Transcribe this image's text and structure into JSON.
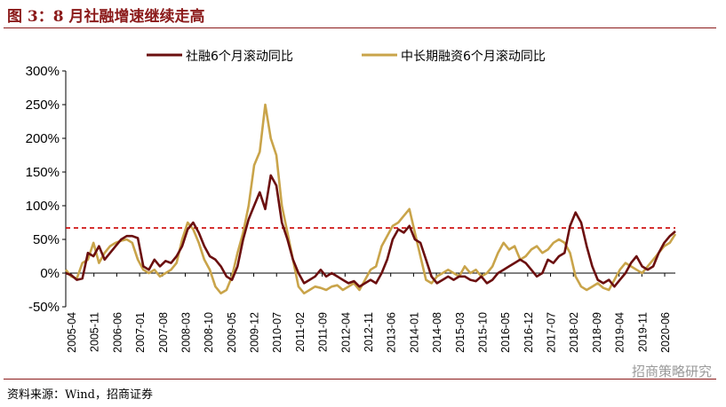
{
  "figure_title": "图 3：8 月社融增速继续走高",
  "source_text": "资料来源：Wind，招商证券",
  "watermark": "招商策略研究",
  "colors": {
    "series1": "#6b0f0f",
    "series2": "#c9a44a",
    "reference": "#cc0000",
    "title": "#8b1a1a"
  },
  "chart_data": {
    "type": "line",
    "title": "",
    "xlabel": "",
    "ylabel": "",
    "ylim": [
      -50,
      300
    ],
    "yticks": [
      "-50%",
      "0%",
      "50%",
      "100%",
      "150%",
      "200%",
      "250%",
      "300%"
    ],
    "yticks_values": [
      -50,
      0,
      50,
      100,
      150,
      200,
      250,
      300
    ],
    "xticks": [
      "2005-04",
      "2005-11",
      "2006-06",
      "2007-01",
      "2007-08",
      "2008-03",
      "2008-10",
      "2009-05",
      "2009-12",
      "2010-07",
      "2011-02",
      "2011-09",
      "2012-04",
      "2012-11",
      "2013-06",
      "2014-01",
      "2014-08",
      "2015-03",
      "2015-10",
      "2016-05",
      "2016-12",
      "2017-07",
      "2018-02",
      "2018-09",
      "2019-04",
      "2019-11",
      "2020-06"
    ],
    "legend_position": "top",
    "grid": false,
    "reference_line": {
      "value": 67,
      "style": "dashed"
    },
    "series": [
      {
        "name": "社融6个月滚动同比",
        "points": [
          [
            0,
            0
          ],
          [
            1,
            -3
          ],
          [
            2,
            -10
          ],
          [
            3,
            -8
          ],
          [
            4,
            30
          ],
          [
            5,
            25
          ],
          [
            6,
            40
          ],
          [
            7,
            20
          ],
          [
            8,
            30
          ],
          [
            9,
            40
          ],
          [
            10,
            50
          ],
          [
            11,
            55
          ],
          [
            12,
            55
          ],
          [
            13,
            52
          ],
          [
            14,
            10
          ],
          [
            15,
            5
          ],
          [
            16,
            20
          ],
          [
            17,
            10
          ],
          [
            18,
            18
          ],
          [
            19,
            15
          ],
          [
            20,
            25
          ],
          [
            21,
            40
          ],
          [
            22,
            65
          ],
          [
            23,
            75
          ],
          [
            24,
            60
          ],
          [
            25,
            40
          ],
          [
            26,
            25
          ],
          [
            27,
            20
          ],
          [
            28,
            10
          ],
          [
            29,
            -5
          ],
          [
            30,
            -10
          ],
          [
            31,
            10
          ],
          [
            32,
            50
          ],
          [
            33,
            80
          ],
          [
            34,
            100
          ],
          [
            35,
            120
          ],
          [
            36,
            95
          ],
          [
            37,
            145
          ],
          [
            38,
            130
          ],
          [
            39,
            75
          ],
          [
            40,
            50
          ],
          [
            41,
            20
          ],
          [
            42,
            0
          ],
          [
            43,
            -15
          ],
          [
            44,
            -10
          ],
          [
            45,
            -5
          ],
          [
            46,
            5
          ],
          [
            47,
            -5
          ],
          [
            48,
            0
          ],
          [
            49,
            -5
          ],
          [
            50,
            -10
          ],
          [
            51,
            -15
          ],
          [
            52,
            -12
          ],
          [
            53,
            -20
          ],
          [
            54,
            -15
          ],
          [
            55,
            -10
          ],
          [
            56,
            -15
          ],
          [
            57,
            0
          ],
          [
            58,
            20
          ],
          [
            59,
            50
          ],
          [
            60,
            65
          ],
          [
            61,
            60
          ],
          [
            62,
            70
          ],
          [
            63,
            50
          ],
          [
            64,
            45
          ],
          [
            65,
            20
          ],
          [
            66,
            -5
          ],
          [
            67,
            -15
          ],
          [
            68,
            -10
          ],
          [
            69,
            -5
          ],
          [
            70,
            -10
          ],
          [
            71,
            -5
          ],
          [
            72,
            -5
          ],
          [
            73,
            -10
          ],
          [
            74,
            -12
          ],
          [
            75,
            -5
          ],
          [
            76,
            -15
          ],
          [
            77,
            -10
          ],
          [
            78,
            0
          ],
          [
            79,
            5
          ],
          [
            80,
            10
          ],
          [
            81,
            15
          ],
          [
            82,
            20
          ],
          [
            83,
            15
          ],
          [
            84,
            5
          ],
          [
            85,
            -5
          ],
          [
            86,
            0
          ],
          [
            87,
            20
          ],
          [
            88,
            15
          ],
          [
            89,
            25
          ],
          [
            90,
            30
          ],
          [
            91,
            70
          ],
          [
            92,
            90
          ],
          [
            93,
            75
          ],
          [
            94,
            40
          ],
          [
            95,
            10
          ],
          [
            96,
            -10
          ],
          [
            97,
            -15
          ],
          [
            98,
            -10
          ],
          [
            99,
            -20
          ],
          [
            100,
            -10
          ],
          [
            101,
            0
          ],
          [
            102,
            15
          ],
          [
            103,
            25
          ],
          [
            104,
            10
          ],
          [
            105,
            5
          ],
          [
            106,
            10
          ],
          [
            107,
            30
          ],
          [
            108,
            45
          ],
          [
            109,
            55
          ],
          [
            110,
            62
          ]
        ]
      },
      {
        "name": "中长期融资6个月滚动同比",
        "points": [
          [
            0,
            5
          ],
          [
            1,
            -5
          ],
          [
            2,
            -8
          ],
          [
            3,
            15
          ],
          [
            4,
            20
          ],
          [
            5,
            45
          ],
          [
            6,
            15
          ],
          [
            7,
            30
          ],
          [
            8,
            40
          ],
          [
            9,
            45
          ],
          [
            10,
            48
          ],
          [
            11,
            50
          ],
          [
            12,
            45
          ],
          [
            13,
            20
          ],
          [
            14,
            5
          ],
          [
            15,
            0
          ],
          [
            16,
            5
          ],
          [
            17,
            -5
          ],
          [
            18,
            0
          ],
          [
            19,
            5
          ],
          [
            20,
            15
          ],
          [
            21,
            50
          ],
          [
            22,
            75
          ],
          [
            23,
            65
          ],
          [
            24,
            45
          ],
          [
            25,
            20
          ],
          [
            26,
            5
          ],
          [
            27,
            -20
          ],
          [
            28,
            -30
          ],
          [
            29,
            -25
          ],
          [
            30,
            -5
          ],
          [
            31,
            30
          ],
          [
            32,
            60
          ],
          [
            33,
            100
          ],
          [
            34,
            160
          ],
          [
            35,
            180
          ],
          [
            36,
            250
          ],
          [
            37,
            200
          ],
          [
            38,
            175
          ],
          [
            39,
            100
          ],
          [
            40,
            60
          ],
          [
            41,
            20
          ],
          [
            42,
            -20
          ],
          [
            43,
            -30
          ],
          [
            44,
            -25
          ],
          [
            45,
            -20
          ],
          [
            46,
            -22
          ],
          [
            47,
            -25
          ],
          [
            48,
            -20
          ],
          [
            49,
            -18
          ],
          [
            50,
            -25
          ],
          [
            51,
            -20
          ],
          [
            52,
            -15
          ],
          [
            53,
            -25
          ],
          [
            54,
            -10
          ],
          [
            55,
            5
          ],
          [
            56,
            10
          ],
          [
            57,
            40
          ],
          [
            58,
            55
          ],
          [
            59,
            70
          ],
          [
            60,
            75
          ],
          [
            61,
            85
          ],
          [
            62,
            95
          ],
          [
            63,
            60
          ],
          [
            64,
            25
          ],
          [
            65,
            -10
          ],
          [
            66,
            -15
          ],
          [
            67,
            -5
          ],
          [
            68,
            0
          ],
          [
            69,
            5
          ],
          [
            70,
            0
          ],
          [
            71,
            -5
          ],
          [
            72,
            10
          ],
          [
            73,
            0
          ],
          [
            74,
            5
          ],
          [
            75,
            -5
          ],
          [
            76,
            0
          ],
          [
            77,
            10
          ],
          [
            78,
            30
          ],
          [
            79,
            45
          ],
          [
            80,
            35
          ],
          [
            81,
            40
          ],
          [
            82,
            20
          ],
          [
            83,
            25
          ],
          [
            84,
            35
          ],
          [
            85,
            40
          ],
          [
            86,
            30
          ],
          [
            87,
            35
          ],
          [
            88,
            45
          ],
          [
            89,
            50
          ],
          [
            90,
            45
          ],
          [
            91,
            30
          ],
          [
            92,
            -5
          ],
          [
            93,
            -20
          ],
          [
            94,
            -25
          ],
          [
            95,
            -20
          ],
          [
            96,
            -15
          ],
          [
            97,
            -22
          ],
          [
            98,
            -25
          ],
          [
            99,
            -10
          ],
          [
            100,
            5
          ],
          [
            101,
            15
          ],
          [
            102,
            10
          ],
          [
            103,
            5
          ],
          [
            104,
            0
          ],
          [
            105,
            10
          ],
          [
            106,
            20
          ],
          [
            107,
            30
          ],
          [
            108,
            40
          ],
          [
            109,
            45
          ],
          [
            110,
            58
          ]
        ]
      }
    ]
  }
}
